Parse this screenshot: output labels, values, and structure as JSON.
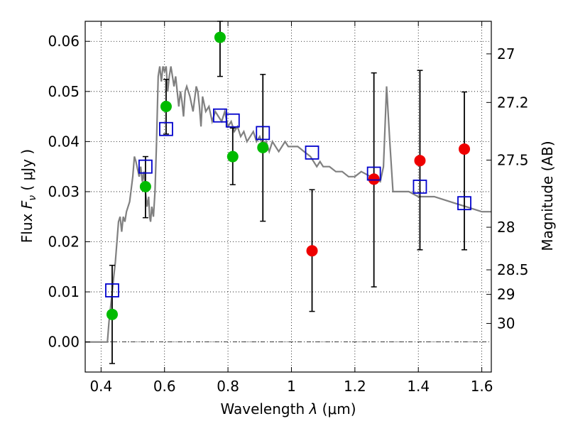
{
  "chart_data": {
    "type": "scatter",
    "title": "",
    "xlabel_prefix": "Wavelength  ",
    "xlabel_lambda": "λ",
    "xlabel_unit": " (μm)",
    "ylabel_prefix": "Flux  ",
    "ylabel_symbol": "F",
    "ylabel_sub": "ν",
    "ylabel_unit": "  ( μJy )",
    "ylabel_right": "Magnitude (AB)",
    "xlim": [
      0.35,
      1.63
    ],
    "ylim": [
      -0.006,
      0.064
    ],
    "grid": true,
    "x_ticks": [
      0.4,
      0.6,
      0.8,
      1.0,
      1.2,
      1.4,
      1.6
    ],
    "x_tick_labels": [
      "0.4",
      "0.6",
      "0.8",
      "1",
      "1.2",
      "1.4",
      "1.6"
    ],
    "y_ticks": [
      0.0,
      0.01,
      0.02,
      0.03,
      0.04,
      0.05,
      0.06
    ],
    "y_tick_labels": [
      "0.00",
      "0.01",
      "0.02",
      "0.03",
      "0.04",
      "0.05",
      "0.06"
    ],
    "right_ticks": [
      {
        "label": "27",
        "flux": 0.0575
      },
      {
        "label": "27.2",
        "flux": 0.0478
      },
      {
        "label": "27.5",
        "flux": 0.0363
      },
      {
        "label": "28",
        "flux": 0.0229
      },
      {
        "label": "28.5",
        "flux": 0.0144
      },
      {
        "label": "29",
        "flux": 0.0095
      },
      {
        "label": "30",
        "flux": 0.0037
      }
    ],
    "model_spectrum": {
      "name": "model SED",
      "color": "#808080",
      "x": [
        0.35,
        0.42,
        0.425,
        0.43,
        0.435,
        0.44,
        0.445,
        0.45,
        0.455,
        0.46,
        0.465,
        0.47,
        0.475,
        0.48,
        0.49,
        0.5,
        0.505,
        0.51,
        0.52,
        0.525,
        0.53,
        0.535,
        0.54,
        0.545,
        0.55,
        0.553,
        0.556,
        0.56,
        0.565,
        0.57,
        0.575,
        0.58,
        0.585,
        0.59,
        0.595,
        0.6,
        0.605,
        0.61,
        0.615,
        0.62,
        0.625,
        0.63,
        0.635,
        0.64,
        0.645,
        0.65,
        0.655,
        0.66,
        0.665,
        0.67,
        0.68,
        0.69,
        0.7,
        0.705,
        0.71,
        0.715,
        0.72,
        0.73,
        0.74,
        0.75,
        0.76,
        0.77,
        0.78,
        0.79,
        0.8,
        0.81,
        0.82,
        0.83,
        0.84,
        0.85,
        0.86,
        0.87,
        0.88,
        0.89,
        0.9,
        0.91,
        0.92,
        0.93,
        0.94,
        0.95,
        0.96,
        0.97,
        0.98,
        0.99,
        1.0,
        1.02,
        1.04,
        1.06,
        1.08,
        1.09,
        1.1,
        1.12,
        1.14,
        1.16,
        1.18,
        1.2,
        1.22,
        1.25,
        1.28,
        1.29,
        1.3,
        1.31,
        1.32,
        1.34,
        1.37,
        1.4,
        1.45,
        1.5,
        1.55,
        1.6,
        1.63
      ],
      "y": [
        0.0,
        0.0,
        0.004,
        0.007,
        0.01,
        0.013,
        0.016,
        0.02,
        0.024,
        0.025,
        0.022,
        0.025,
        0.024,
        0.026,
        0.028,
        0.033,
        0.037,
        0.036,
        0.033,
        0.035,
        0.032,
        0.034,
        0.03,
        0.027,
        0.029,
        0.025,
        0.024,
        0.027,
        0.025,
        0.03,
        0.04,
        0.053,
        0.055,
        0.052,
        0.055,
        0.054,
        0.055,
        0.05,
        0.053,
        0.055,
        0.053,
        0.051,
        0.053,
        0.05,
        0.047,
        0.05,
        0.048,
        0.045,
        0.05,
        0.051,
        0.049,
        0.046,
        0.051,
        0.05,
        0.047,
        0.043,
        0.049,
        0.046,
        0.047,
        0.044,
        0.046,
        0.045,
        0.044,
        0.046,
        0.043,
        0.044,
        0.042,
        0.043,
        0.041,
        0.042,
        0.04,
        0.041,
        0.042,
        0.04,
        0.041,
        0.039,
        0.04,
        0.038,
        0.04,
        0.039,
        0.038,
        0.039,
        0.04,
        0.039,
        0.039,
        0.039,
        0.038,
        0.037,
        0.035,
        0.036,
        0.035,
        0.035,
        0.034,
        0.034,
        0.033,
        0.033,
        0.034,
        0.033,
        0.032,
        0.035,
        0.051,
        0.04,
        0.03,
        0.03,
        0.03,
        0.029,
        0.029,
        0.028,
        0.027,
        0.026,
        0.026
      ]
    },
    "series": [
      {
        "name": "green points",
        "color": "#00bb00",
        "marker": "circle",
        "x": [
          0.435,
          0.54,
          0.605,
          0.775,
          0.815,
          0.91
        ],
        "y": [
          0.0055,
          0.031,
          0.047,
          0.0608,
          0.037,
          0.0388
        ],
        "yerr_low": [
          -0.0043,
          0.0248,
          0.0415,
          0.053,
          0.0314,
          0.0241
        ],
        "yerr_high": [
          0.0153,
          0.037,
          0.0524,
          0.064,
          0.0427,
          0.0534
        ]
      },
      {
        "name": "red points",
        "color": "#ee0000",
        "marker": "circle",
        "x": [
          1.065,
          1.26,
          1.405,
          1.545
        ],
        "y": [
          0.0182,
          0.0325,
          0.0362,
          0.0385
        ],
        "yerr_low": [
          0.0061,
          0.011,
          0.0184,
          0.0184
        ],
        "yerr_high": [
          0.0304,
          0.0537,
          0.0542,
          0.0499
        ]
      },
      {
        "name": "model photometry",
        "color": "#0000cc",
        "marker": "square-open",
        "x": [
          0.435,
          0.54,
          0.605,
          0.775,
          0.815,
          0.91,
          1.065,
          1.26,
          1.405,
          1.545
        ],
        "y": [
          0.0103,
          0.035,
          0.0425,
          0.0452,
          0.0442,
          0.0417,
          0.0378,
          0.0336,
          0.031,
          0.0277
        ]
      }
    ]
  }
}
